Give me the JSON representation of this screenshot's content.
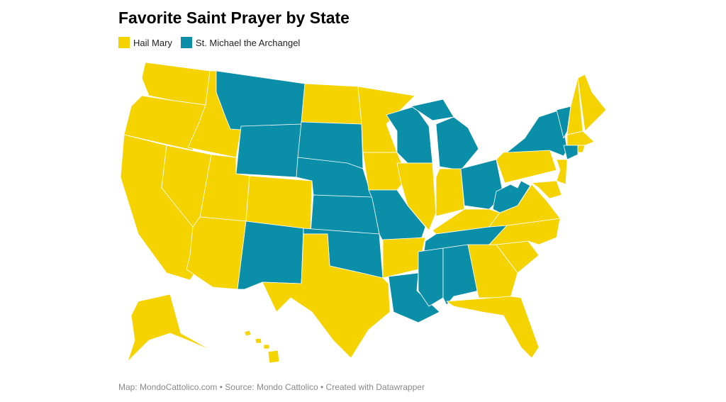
{
  "title": "Favorite Saint Prayer by State",
  "legend": [
    {
      "label": "Hail Mary",
      "key": "hail",
      "color": "#f5d300"
    },
    {
      "label": "St. Michael the Archangel",
      "key": "michael",
      "color": "#0b8fa8"
    }
  ],
  "footer": "Map: MondoCattolico.com • Source: Mondo Cattolico • Created with Datawrapper",
  "states": {
    "WA": "hail",
    "OR": "hail",
    "CA": "hail",
    "NV": "hail",
    "ID": "hail",
    "MT": "michael",
    "WY": "michael",
    "UT": "hail",
    "AZ": "hail",
    "CO": "hail",
    "NM": "michael",
    "ND": "hail",
    "SD": "michael",
    "NE": "michael",
    "KS": "michael",
    "OK": "michael",
    "TX": "hail",
    "MN": "hail",
    "IA": "hail",
    "MO": "michael",
    "AR": "hail",
    "LA": "michael",
    "WI": "michael",
    "IL": "hail",
    "MI": "michael",
    "IN": "hail",
    "OH": "michael",
    "KY": "hail",
    "TN": "michael",
    "MS": "michael",
    "AL": "michael",
    "GA": "hail",
    "FL": "hail",
    "SC": "hail",
    "NC": "hail",
    "VA": "hail",
    "WV": "michael",
    "PA": "hail",
    "NY": "michael",
    "VT": "michael",
    "NH": "hail",
    "ME": "hail",
    "MA": "hail",
    "CT": "michael",
    "RI": "hail",
    "NJ": "hail",
    "MD": "hail",
    "AK": "hail",
    "HI": "hail"
  }
}
